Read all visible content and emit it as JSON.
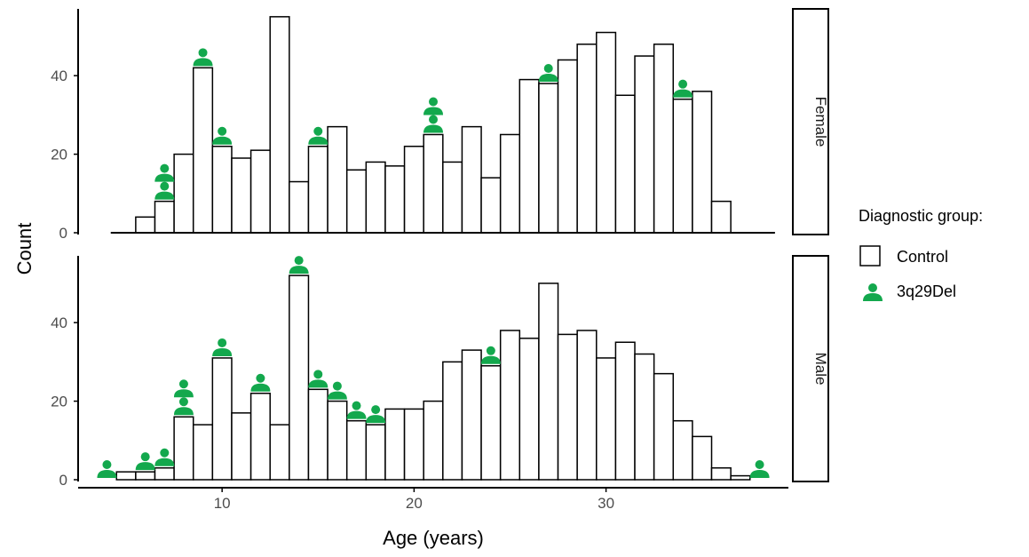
{
  "chart_data": {
    "type": "bar",
    "xlabel": "Age (years)",
    "ylabel": "Count",
    "xlim": [
      2.5,
      39.5
    ],
    "ylim": [
      0,
      57
    ],
    "x_ticks": [
      10,
      20,
      30
    ],
    "y_ticks": [
      0,
      20,
      40
    ],
    "bin_width": 1,
    "legend": {
      "title": "Diagnostic group:",
      "placement": "right",
      "entries": [
        {
          "label": "Control",
          "symbol": "open-square"
        },
        {
          "label": "3q29Del",
          "symbol": "person-icon",
          "color": "#13A84D"
        }
      ]
    },
    "facets": [
      {
        "name": "Female",
        "control": {
          "x": [
            6,
            7,
            8,
            9,
            10,
            11,
            12,
            13,
            14,
            15,
            16,
            17,
            18,
            19,
            20,
            21,
            22,
            23,
            24,
            25,
            26,
            27,
            28,
            29,
            30,
            31,
            32,
            33,
            34,
            35,
            36,
            37
          ],
          "values": [
            4,
            8,
            20,
            42,
            22,
            19,
            21,
            55,
            13,
            22,
            27,
            16,
            18,
            17,
            22,
            25,
            18,
            27,
            14,
            25,
            39,
            38,
            44,
            48,
            51,
            35,
            45,
            48,
            34,
            36,
            8,
            0
          ]
        },
        "deletion": {
          "x": [
            7,
            9,
            10,
            15,
            21,
            27,
            34
          ],
          "values": [
            2,
            1,
            1,
            1,
            2,
            1,
            1
          ]
        }
      },
      {
        "name": "Male",
        "control": {
          "x": [
            5,
            6,
            7,
            8,
            9,
            10,
            11,
            12,
            13,
            14,
            15,
            16,
            17,
            18,
            19,
            20,
            21,
            22,
            23,
            24,
            25,
            26,
            27,
            28,
            29,
            30,
            31,
            32,
            33,
            34,
            35,
            36,
            37
          ],
          "values": [
            2,
            2,
            3,
            16,
            14,
            31,
            17,
            22,
            14,
            52,
            23,
            20,
            15,
            14,
            18,
            18,
            20,
            30,
            33,
            29,
            38,
            36,
            50,
            37,
            38,
            31,
            35,
            32,
            27,
            15,
            11,
            3,
            1
          ]
        },
        "deletion": {
          "x": [
            4,
            6,
            7,
            8,
            10,
            12,
            14,
            15,
            16,
            17,
            18,
            24,
            38
          ],
          "values": [
            1,
            1,
            1,
            2,
            1,
            1,
            1,
            1,
            1,
            1,
            1,
            1,
            1
          ]
        }
      }
    ]
  }
}
